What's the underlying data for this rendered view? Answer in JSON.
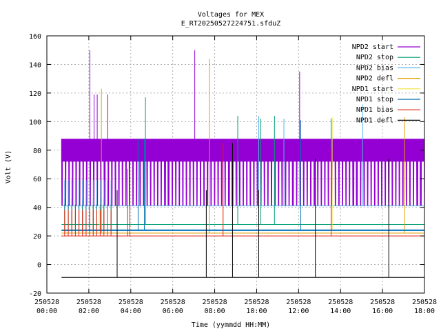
{
  "chart_data": {
    "type": "line",
    "title": "Voltages for MEX",
    "subtitle": "E_RT20250527224751.sfduZ",
    "xlabel": "Time (yymmdd HH:MM)",
    "ylabel": "Volt (V)",
    "xlim_hours": [
      0,
      18
    ],
    "ylim": [
      -20,
      160
    ],
    "grid": true,
    "legend_position": "top-right",
    "x_ticks": [
      {
        "hours": 0,
        "date": "250528",
        "time": "00:00"
      },
      {
        "hours": 2,
        "date": "250528",
        "time": "02:00"
      },
      {
        "hours": 4,
        "date": "250528",
        "time": "04:00"
      },
      {
        "hours": 6,
        "date": "250528",
        "time": "06:00"
      },
      {
        "hours": 8,
        "date": "250528",
        "time": "08:00"
      },
      {
        "hours": 10,
        "date": "250528",
        "time": "10:00"
      },
      {
        "hours": 12,
        "date": "250528",
        "time": "12:00"
      },
      {
        "hours": 14,
        "date": "250528",
        "time": "14:00"
      },
      {
        "hours": 16,
        "date": "250528",
        "time": "16:00"
      },
      {
        "hours": 18,
        "date": "250528",
        "time": "18:00"
      }
    ],
    "y_ticks": [
      -20,
      0,
      20,
      40,
      60,
      80,
      100,
      120,
      140,
      160
    ],
    "series": [
      {
        "name": "NPD2 start",
        "color": "#9400d3",
        "base": 72,
        "high": 88,
        "spikes": [
          [
            2.05,
            150
          ],
          [
            2.25,
            119
          ],
          [
            2.4,
            119
          ],
          [
            2.9,
            119
          ],
          [
            7.05,
            150
          ],
          [
            12.05,
            135
          ]
        ]
      },
      {
        "name": "NPD2 stop",
        "color": "#009e73",
        "base": 28,
        "spikes": [
          [
            4.7,
            117
          ],
          [
            9.1,
            104
          ],
          [
            10.2,
            102
          ],
          [
            10.85,
            104
          ],
          [
            13.55,
            102
          ]
        ]
      },
      {
        "name": "NPD2 bias",
        "color": "#56b4e9",
        "base": 41,
        "spikes": [
          [
            10.1,
            104
          ],
          [
            11.3,
            102
          ],
          [
            15.05,
            112
          ]
        ]
      },
      {
        "name": "NPD2 defl",
        "color": "#e69f00",
        "base": 22,
        "spikes": [
          [
            2.6,
            123
          ],
          [
            7.75,
            144
          ],
          [
            17.05,
            103
          ]
        ]
      },
      {
        "name": "NPD1 start",
        "color": "#f0e442",
        "base": 24,
        "spikes": [
          [
            2.5,
            40
          ],
          [
            8.4,
            40
          ],
          [
            13.6,
            103
          ]
        ]
      },
      {
        "name": "NPD1 stop",
        "color": "#0072b2",
        "base": 24,
        "spikes": [
          [
            4.35,
            88
          ],
          [
            4.65,
            88
          ],
          [
            12.1,
            101
          ]
        ]
      },
      {
        "name": "NPD1 bias",
        "color": "#e51e10",
        "base": 20,
        "spikes": [
          [
            3.85,
            67
          ],
          [
            3.95,
            67
          ],
          [
            8.4,
            85
          ],
          [
            13.55,
            81
          ]
        ]
      },
      {
        "name": "NPD1 defl",
        "color": "#000000",
        "base": -9,
        "start_hours": 0.7,
        "end_hours": 18,
        "spikes": [
          [
            3.35,
            52
          ],
          [
            7.6,
            52
          ],
          [
            8.85,
            85
          ],
          [
            10.1,
            52
          ],
          [
            12.8,
            74
          ],
          [
            16.3,
            74
          ]
        ]
      }
    ]
  }
}
